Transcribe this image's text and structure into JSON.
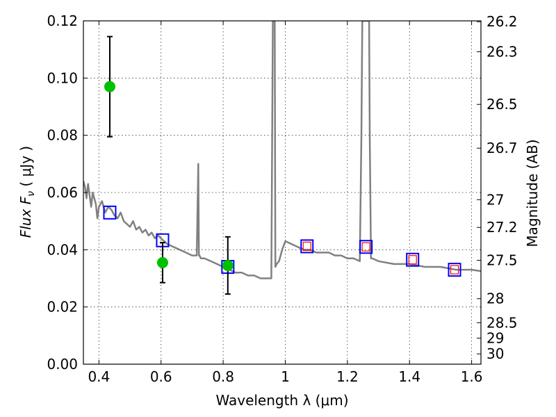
{
  "chart_data": {
    "type": "scatter",
    "title": "",
    "xlabel": "Wavelength  λ (μm)",
    "ylabel": "Flux  F",
    "ylabel_sub": "ν",
    "ylabel_unit": "  ( μJy )",
    "y2label": "Magnitude (AB)",
    "xlim": [
      0.35,
      1.63
    ],
    "ylim": [
      0,
      0.12
    ],
    "grid": true,
    "x_ticks": [
      {
        "value": 0.4,
        "label": "0.4"
      },
      {
        "value": 0.6,
        "label": "0.6"
      },
      {
        "value": 0.8,
        "label": "0.8"
      },
      {
        "value": 1.0,
        "label": "1"
      },
      {
        "value": 1.2,
        "label": "1.2"
      },
      {
        "value": 1.4,
        "label": "1.4"
      },
      {
        "value": 1.6,
        "label": "1.6"
      }
    ],
    "y_ticks": [
      {
        "value": 0.0,
        "label": "0.00"
      },
      {
        "value": 0.02,
        "label": "0.02"
      },
      {
        "value": 0.04,
        "label": "0.04"
      },
      {
        "value": 0.06,
        "label": "0.06"
      },
      {
        "value": 0.08,
        "label": "0.08"
      },
      {
        "value": 0.1,
        "label": "0.10"
      },
      {
        "value": 0.12,
        "label": "0.12"
      }
    ],
    "y2_ticks": [
      {
        "flux": 0.1197,
        "label": "26.2"
      },
      {
        "flux": 0.1092,
        "label": "26.3"
      },
      {
        "flux": 0.0908,
        "label": "26.5"
      },
      {
        "flux": 0.0755,
        "label": "26.7"
      },
      {
        "flux": 0.0575,
        "label": "27"
      },
      {
        "flux": 0.0478,
        "label": "27.2"
      },
      {
        "flux": 0.0363,
        "label": "27.5"
      },
      {
        "flux": 0.0229,
        "label": "28"
      },
      {
        "flux": 0.0145,
        "label": "28.5"
      },
      {
        "flux": 0.0091,
        "label": "29"
      },
      {
        "flux": 0.0036,
        "label": "30"
      }
    ],
    "series": [
      {
        "kind": "model_sed",
        "color": "#808080",
        "x": [
          0.35,
          0.355,
          0.36,
          0.365,
          0.37,
          0.375,
          0.38,
          0.385,
          0.39,
          0.395,
          0.4,
          0.41,
          0.42,
          0.43,
          0.44,
          0.45,
          0.46,
          0.47,
          0.48,
          0.49,
          0.5,
          0.51,
          0.52,
          0.53,
          0.54,
          0.55,
          0.56,
          0.57,
          0.58,
          0.59,
          0.6,
          0.61,
          0.62,
          0.64,
          0.66,
          0.68,
          0.7,
          0.715,
          0.72,
          0.722,
          0.724,
          0.728,
          0.74,
          0.76,
          0.78,
          0.8,
          0.82,
          0.84,
          0.86,
          0.88,
          0.9,
          0.92,
          0.94,
          0.955,
          0.96,
          0.962,
          0.964,
          0.966,
          0.968,
          0.972,
          0.98,
          0.99,
          1.0,
          1.02,
          1.04,
          1.06,
          1.08,
          1.1,
          1.12,
          1.14,
          1.16,
          1.18,
          1.2,
          1.22,
          1.24,
          1.245,
          1.248,
          1.252,
          1.27,
          1.272,
          1.276,
          1.28,
          1.3,
          1.35,
          1.4,
          1.45,
          1.5,
          1.55,
          1.6,
          1.63
        ],
        "y": [
          0.064,
          0.062,
          0.058,
          0.063,
          0.059,
          0.055,
          0.06,
          0.058,
          0.056,
          0.051,
          0.055,
          0.057,
          0.053,
          0.055,
          0.054,
          0.052,
          0.051,
          0.053,
          0.05,
          0.049,
          0.048,
          0.05,
          0.047,
          0.048,
          0.046,
          0.047,
          0.045,
          0.046,
          0.044,
          0.045,
          0.044,
          0.043,
          0.042,
          0.041,
          0.04,
          0.039,
          0.038,
          0.038,
          0.07,
          0.038,
          0.038,
          0.037,
          0.037,
          0.036,
          0.035,
          0.034,
          0.033,
          0.032,
          0.032,
          0.031,
          0.031,
          0.03,
          0.03,
          0.03,
          0.12,
          0.12,
          0.12,
          0.12,
          0.034,
          0.035,
          0.036,
          0.04,
          0.043,
          0.042,
          0.041,
          0.04,
          0.04,
          0.039,
          0.039,
          0.039,
          0.038,
          0.038,
          0.037,
          0.037,
          0.036,
          0.08,
          0.12,
          0.12,
          0.12,
          0.08,
          0.037,
          0.037,
          0.036,
          0.035,
          0.035,
          0.034,
          0.034,
          0.033,
          0.033,
          0.0325
        ]
      },
      {
        "kind": "observed",
        "color": "#00c000",
        "x": [
          0.435,
          0.605,
          0.815
        ],
        "y": [
          0.097,
          0.0355,
          0.0345
        ],
        "yerr": [
          0.0175,
          0.007,
          0.01
        ]
      },
      {
        "kind": "model_band_flux",
        "color": "#0000ff",
        "x": [
          0.435,
          0.605,
          0.815,
          1.07,
          1.26,
          1.41,
          1.545
        ],
        "y": [
          0.053,
          0.0433,
          0.034,
          0.0412,
          0.041,
          0.0365,
          0.033
        ]
      },
      {
        "kind": "model_band_flux_inner",
        "color": "#ff0000",
        "x": [
          1.07,
          1.26,
          1.41,
          1.545
        ],
        "y": [
          0.0412,
          0.041,
          0.0365,
          0.033
        ]
      }
    ]
  }
}
